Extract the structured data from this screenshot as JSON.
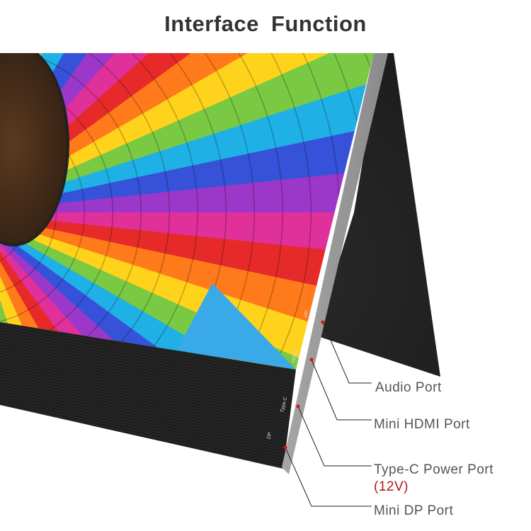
{
  "title": "Interface  Function",
  "device_port_labels": [
    "HP",
    "HDMI",
    "Type-C",
    "DP"
  ],
  "callouts": [
    {
      "label": "Audio Port"
    },
    {
      "label": "Mini HDMI Port"
    },
    {
      "label": "Type-C Power Port",
      "note": "(12V)"
    },
    {
      "label": "Mini DP Port"
    }
  ],
  "colors": {
    "dot": "#e01010",
    "note": "#b01818",
    "text": "#555555"
  }
}
